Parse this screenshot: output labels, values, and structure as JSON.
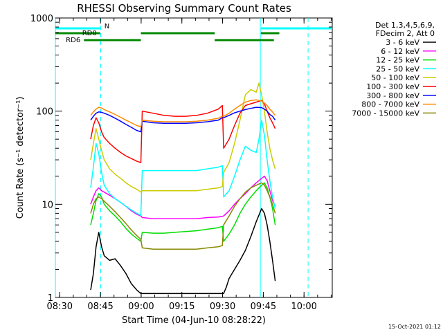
{
  "chart_data": {
    "type": "line",
    "title": "RHESSI Observing Summary Count Rates",
    "xlabel": "Start Time (04-Jun-10 08:28:22)",
    "ylabel": "Count Rate (s⁻¹ detector⁻¹)",
    "yscale": "log",
    "ylim": [
      1,
      1000
    ],
    "xlim_minutes": [
      0,
      102
    ],
    "x_ticks": [
      {
        "label": "08:30",
        "min": 1.6
      },
      {
        "label": "08:45",
        "min": 16.6
      },
      {
        "label": "09:00",
        "min": 31.6
      },
      {
        "label": "09:15",
        "min": 46.6
      },
      {
        "label": "09:30",
        "min": 61.6
      },
      {
        "label": "09:45",
        "min": 76.6
      },
      {
        "label": "10:00",
        "min": 91.6
      }
    ],
    "y_ticks": [
      {
        "label": "1",
        "value": 1
      },
      {
        "label": "10",
        "value": 10
      },
      {
        "label": "100",
        "value": 100
      },
      {
        "label": "1000",
        "value": 1000
      }
    ],
    "legend_header": [
      "Det 1,3,4,5,6,9,",
      "FDecim 2, Att 0"
    ],
    "series": [
      {
        "name": "3 - 6 keV",
        "color": "#000000",
        "x": [
          13,
          14,
          15,
          16,
          17,
          18,
          20,
          22,
          24,
          26,
          28,
          30,
          31.5,
          62,
          63,
          64,
          66,
          68,
          70,
          72,
          74,
          76,
          77,
          78,
          79,
          80,
          81
        ],
        "y": [
          1.2,
          1.8,
          3.5,
          5,
          3.5,
          2.8,
          2.5,
          2.6,
          2.2,
          1.8,
          1.4,
          1.2,
          1.1,
          1.1,
          1.3,
          1.6,
          2,
          2.5,
          3.2,
          4.5,
          6.5,
          9,
          8,
          6,
          4,
          2.5,
          1.5
        ]
      },
      {
        "name": "6 - 12 keV",
        "color": "#ff00ff",
        "x": [
          13,
          14,
          15,
          16,
          17,
          18,
          20,
          22,
          24,
          26,
          28,
          30,
          31.5,
          32,
          36,
          40,
          44,
          48,
          52,
          56,
          60,
          61.5,
          62,
          64,
          66,
          68,
          70,
          72,
          74,
          76,
          77,
          78,
          79,
          80,
          81
        ],
        "y": [
          10,
          12,
          14,
          15,
          14,
          13.5,
          12.5,
          11.5,
          10.5,
          9.5,
          8.5,
          7.8,
          7.5,
          7.2,
          7.0,
          7.0,
          7.0,
          7.0,
          7.0,
          7.2,
          7.3,
          7.4,
          7.5,
          8.5,
          10,
          11.5,
          13,
          15,
          17,
          19,
          20,
          18,
          14,
          11,
          9.5
        ]
      },
      {
        "name": "12 - 25 keV",
        "color": "#00dd00",
        "x": [
          13,
          14,
          15,
          16,
          17,
          18,
          20,
          22,
          24,
          26,
          28,
          30,
          31.5,
          32,
          36,
          40,
          44,
          48,
          52,
          56,
          60,
          61.5,
          62,
          64,
          66,
          68,
          70,
          72,
          74,
          76,
          77,
          78,
          79,
          80,
          81
        ],
        "y": [
          6,
          8,
          11,
          13,
          12,
          10,
          8.5,
          7.5,
          6.5,
          5.5,
          4.8,
          4.3,
          4.0,
          5.0,
          4.9,
          4.9,
          5.0,
          5.1,
          5.2,
          5.4,
          5.6,
          5.8,
          4.0,
          4.8,
          6,
          8,
          10,
          12,
          14,
          16,
          17,
          15,
          12,
          9,
          6
        ]
      },
      {
        "name": "25 - 50 keV",
        "color": "#00ffff",
        "x": [
          13,
          14,
          15,
          16,
          17,
          18,
          20,
          22,
          24,
          26,
          28,
          30,
          31.5,
          32,
          36,
          40,
          44,
          48,
          52,
          56,
          60,
          61.5,
          62,
          64,
          66,
          68,
          70,
          72,
          74,
          75,
          76,
          77,
          78,
          79,
          80,
          81
        ],
        "y": [
          15,
          25,
          45,
          35,
          22,
          16,
          13,
          11.5,
          10.5,
          9.5,
          8.7,
          8.0,
          7.6,
          23,
          23,
          23,
          23,
          23,
          23,
          24,
          25,
          26,
          12,
          14,
          20,
          30,
          42,
          38,
          36,
          50,
          80,
          55,
          30,
          18,
          12,
          9
        ]
      },
      {
        "name": "50 - 100 keV",
        "color": "#cccc00",
        "x": [
          13,
          14,
          15,
          16,
          17,
          18,
          20,
          22,
          24,
          26,
          28,
          30,
          31.5,
          32,
          36,
          40,
          44,
          48,
          52,
          56,
          60,
          61.5,
          62,
          64,
          66,
          68,
          70,
          72,
          74,
          75,
          76,
          77,
          78,
          79,
          80,
          81
        ],
        "y": [
          30,
          45,
          65,
          50,
          38,
          30,
          24,
          21,
          19,
          17,
          15.5,
          14.5,
          13.5,
          14,
          14,
          14,
          14,
          14,
          14,
          14.5,
          15,
          15.5,
          22,
          28,
          45,
          80,
          150,
          170,
          160,
          200,
          150,
          100,
          60,
          40,
          30,
          24
        ]
      },
      {
        "name": "100 - 300 keV",
        "color": "#ff0000",
        "x": [
          13,
          14,
          15,
          16,
          17,
          18,
          20,
          22,
          24,
          26,
          28,
          30,
          31.5,
          32,
          36,
          40,
          44,
          48,
          52,
          56,
          60,
          61.5,
          62,
          64,
          66,
          68,
          70,
          72,
          74,
          76,
          77,
          78,
          79,
          80,
          81
        ],
        "y": [
          50,
          70,
          85,
          75,
          60,
          52,
          45,
          40,
          36,
          33,
          31,
          29,
          28,
          100,
          95,
          90,
          88,
          88,
          90,
          95,
          105,
          115,
          40,
          50,
          70,
          95,
          115,
          120,
          125,
          130,
          120,
          100,
          85,
          75,
          65
        ]
      },
      {
        "name": "300 - 800 keV",
        "color": "#0000ff",
        "x": [
          13,
          14,
          15,
          16,
          17,
          18,
          20,
          22,
          24,
          26,
          28,
          30,
          31.5,
          32,
          36,
          40,
          44,
          48,
          52,
          56,
          60,
          61.5,
          62,
          64,
          66,
          68,
          70,
          72,
          74,
          76,
          77,
          78,
          79,
          80,
          81
        ],
        "y": [
          80,
          88,
          95,
          98,
          97,
          95,
          90,
          84,
          78,
          72,
          67,
          62,
          60,
          78,
          75,
          74,
          74,
          74,
          75,
          77,
          80,
          85,
          85,
          90,
          96,
          100,
          104,
          107,
          110,
          109,
          105,
          100,
          92,
          88,
          80
        ]
      },
      {
        "name": "800 - 7000 keV",
        "color": "#ff8800",
        "x": [
          13,
          14,
          15,
          16,
          17,
          18,
          20,
          22,
          24,
          26,
          28,
          30,
          31.5,
          32,
          36,
          40,
          44,
          48,
          52,
          56,
          60,
          61.5,
          62,
          64,
          66,
          68,
          70,
          72,
          74,
          76,
          77,
          78,
          79,
          80,
          81
        ],
        "y": [
          90,
          98,
          105,
          110,
          108,
          104,
          98,
          92,
          86,
          80,
          75,
          70,
          68,
          80,
          78,
          77,
          77,
          77,
          78,
          80,
          84,
          88,
          88,
          95,
          105,
          115,
          125,
          130,
          132,
          128,
          122,
          115,
          105,
          98,
          90
        ]
      },
      {
        "name": "7000 - 15000 keV",
        "color": "#888800",
        "x": [
          13,
          14,
          15,
          16,
          17,
          18,
          20,
          22,
          24,
          26,
          28,
          30,
          31.5,
          32,
          36,
          40,
          44,
          48,
          52,
          56,
          60,
          61.5,
          62,
          64,
          66,
          68,
          70,
          72,
          74,
          76,
          77,
          78,
          79,
          80,
          81
        ],
        "y": [
          8,
          10,
          11.5,
          12,
          11.5,
          10.8,
          9.5,
          8.3,
          7.2,
          6.2,
          5.3,
          4.6,
          4.2,
          3.4,
          3.3,
          3.3,
          3.3,
          3.3,
          3.3,
          3.4,
          3.5,
          3.6,
          6,
          7.5,
          9.5,
          11.5,
          13.5,
          15,
          16,
          17,
          16,
          14,
          12,
          10,
          8
        ]
      }
    ],
    "annotations": {
      "flags": [
        {
          "label": "N",
          "color": "#00ffff",
          "segments": [
            [
              0,
              16.5
            ],
            [
              75.7,
              102
            ]
          ],
          "level": 1
        },
        {
          "label": "RD0",
          "color": "#008800",
          "segments": [
            [
              0,
              16.5
            ],
            [
              31.5,
              58.7
            ],
            [
              75.7,
              82.5
            ]
          ],
          "level": 2
        },
        {
          "label": "RD6",
          "color": "#008800",
          "segments": [
            [
              10.5,
              31.5
            ],
            [
              58.7,
              80.5
            ]
          ],
          "level": 3
        }
      ],
      "vertical_solid": [
        0,
        75.5
      ],
      "vertical_dashed": [
        16.7,
        93.1
      ]
    }
  },
  "footer_stamp": "15-Oct-2021 01:12"
}
